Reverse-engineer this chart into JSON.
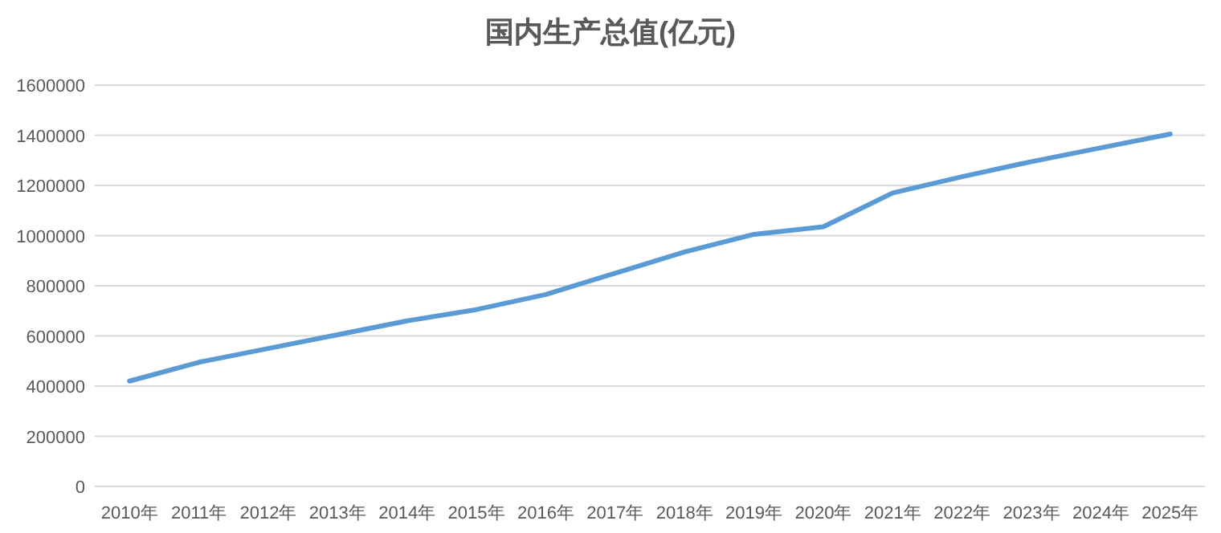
{
  "chart_data": {
    "type": "line",
    "title": "国内生产总值(亿元)",
    "categories": [
      "2010年",
      "2011年",
      "2012年",
      "2013年",
      "2014年",
      "2015年",
      "2016年",
      "2017年",
      "2018年",
      "2019年",
      "2020年",
      "2021年",
      "2022年",
      "2023年",
      "2024年",
      "2025年"
    ],
    "series": [
      {
        "color": "#5b9bd5",
        "values": [
          420000,
          495000,
          550000,
          605000,
          660000,
          705000,
          765000,
          850000,
          935000,
          1005000,
          1035000,
          1170000,
          1235000,
          1295000,
          1350000,
          1405000
        ]
      }
    ],
    "ylim": [
      0,
      1600000
    ],
    "yticks": [
      0,
      200000,
      400000,
      600000,
      800000,
      1000000,
      1200000,
      1400000,
      1600000
    ],
    "grid": "y"
  }
}
